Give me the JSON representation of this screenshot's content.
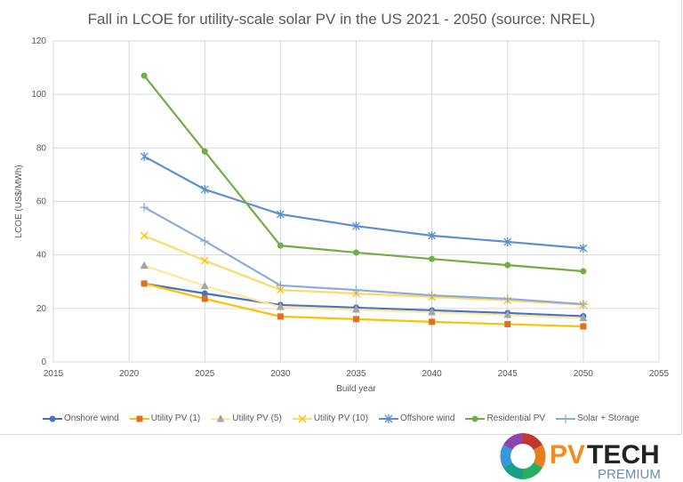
{
  "chart_data": {
    "type": "line",
    "title": "Fall in LCOE for utility-scale solar PV in the US 2021 - 2050 (source: NREL)",
    "xlabel": "Build year",
    "ylabel": "LCOE (US$/MWh)",
    "xlim": [
      2015,
      2055
    ],
    "ylim": [
      0,
      120
    ],
    "xticks": [
      2015,
      2020,
      2025,
      2030,
      2035,
      2040,
      2045,
      2050,
      2055
    ],
    "yticks": [
      0,
      20,
      40,
      60,
      80,
      100,
      120
    ],
    "grid": true,
    "legend_position": "bottom",
    "x": [
      2021,
      2025,
      2030,
      2035,
      2040,
      2045,
      2050
    ],
    "series": [
      {
        "name": "Onshore wind",
        "color": "#4472c4",
        "marker": "circle",
        "marker_color": "#4472c4",
        "values": [
          29.3,
          25.6,
          21.3,
          20.3,
          19.3,
          18.3,
          17.1
        ]
      },
      {
        "name": "Utility PV (1)",
        "color": "#ffc000",
        "marker": "square",
        "marker_color": "#e07020",
        "values": [
          29.3,
          23.6,
          17.0,
          16.0,
          15.0,
          14.1,
          13.3
        ]
      },
      {
        "name": "Utility PV (5)",
        "color": "#ffe699",
        "marker": "triangle",
        "marker_color": "#a5a5a5",
        "values": [
          36.0,
          28.4,
          20.6,
          19.6,
          18.6,
          17.6,
          16.4
        ]
      },
      {
        "name": "Utility PV (10)",
        "color": "#ffd966",
        "marker": "x",
        "marker_color": "#ffc000",
        "values": [
          47.2,
          37.9,
          26.9,
          25.6,
          24.3,
          23.0,
          21.4
        ]
      },
      {
        "name": "Offshore wind",
        "color": "#5b8fd0",
        "marker": "asterisk",
        "marker_color": "#5b8fd0",
        "values": [
          76.8,
          64.5,
          55.2,
          50.8,
          47.2,
          44.9,
          42.5
        ]
      },
      {
        "name": "Residential PV",
        "color": "#70ad47",
        "marker": "circle",
        "marker_color": "#70ad47",
        "values": [
          107.0,
          78.7,
          43.5,
          40.9,
          38.5,
          36.2,
          33.9
        ]
      },
      {
        "name": "Solar + Storage",
        "color": "#8faadc",
        "marker": "plus",
        "marker_color": "#8faadc",
        "values": [
          57.8,
          45.2,
          28.6,
          26.9,
          24.9,
          23.6,
          21.6
        ]
      }
    ]
  },
  "logo": {
    "text": "PVTECH",
    "sub": "PREMIUM"
  }
}
